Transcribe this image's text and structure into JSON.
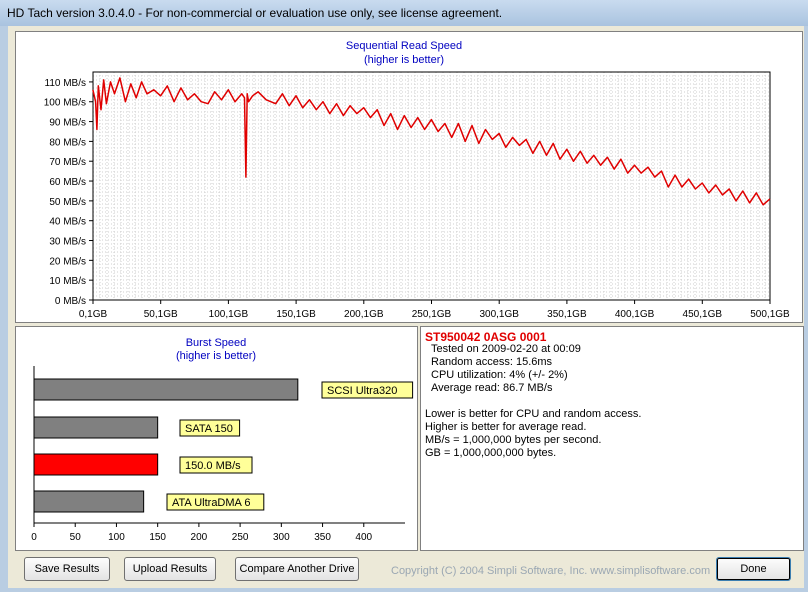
{
  "window": {
    "title": "HD Tach version 3.0.4.0  - For non-commercial or evaluation use only, see license agreement."
  },
  "sequential_chart": {
    "title": "Sequential Read Speed",
    "subtitle": "(higher is better)",
    "y_ticks": [
      "0 MB/s",
      "10 MB/s",
      "20 MB/s",
      "30 MB/s",
      "40 MB/s",
      "50 MB/s",
      "60 MB/s",
      "70 MB/s",
      "80 MB/s",
      "90 MB/s",
      "100 MB/s",
      "110 MB/s"
    ],
    "x_ticks": [
      "0,1GB",
      "50,1GB",
      "100,1GB",
      "150,1GB",
      "200,1GB",
      "250,1GB",
      "300,1GB",
      "350,1GB",
      "400,1GB",
      "450,1GB",
      "500,1GB"
    ]
  },
  "burst_chart": {
    "title": "Burst Speed",
    "subtitle": "(higher is better)",
    "x_ticks": [
      "0",
      "50",
      "100",
      "150",
      "200",
      "250",
      "300",
      "350",
      "400"
    ],
    "bars": [
      {
        "label": "SCSI Ultra320",
        "value": 320,
        "color": "#808080"
      },
      {
        "label": "SATA 150",
        "value": 150,
        "color": "#808080"
      },
      {
        "label": "150.0 MB/s",
        "value": 150,
        "color": "#ff0000"
      },
      {
        "label": "ATA UltraDMA 6",
        "value": 133,
        "color": "#808080"
      }
    ]
  },
  "chart_data": [
    {
      "type": "line",
      "title": "Sequential Read Speed",
      "subtitle": "(higher is better)",
      "xlabel": "",
      "ylabel": "",
      "xlim": [
        0.1,
        500.1
      ],
      "ylim": [
        0,
        115
      ],
      "x_tick_labels": [
        "0,1GB",
        "50,1GB",
        "100,1GB",
        "150,1GB",
        "200,1GB",
        "250,1GB",
        "300,1GB",
        "350,1GB",
        "400,1GB",
        "450,1GB",
        "500,1GB"
      ],
      "y_tick_labels": [
        "0 MB/s",
        "10 MB/s",
        "20 MB/s",
        "30 MB/s",
        "40 MB/s",
        "50 MB/s",
        "60 MB/s",
        "70 MB/s",
        "80 MB/s",
        "90 MB/s",
        "100 MB/s",
        "110 MB/s"
      ],
      "grid": true,
      "series": [
        {
          "color": "#e00000",
          "x": [
            0,
            2,
            3,
            4,
            6,
            8,
            10,
            13,
            16,
            20,
            24,
            28,
            32,
            36,
            40,
            45,
            50,
            55,
            60,
            65,
            70,
            75,
            80,
            85,
            90,
            95,
            100,
            105,
            110,
            112,
            113,
            114,
            115,
            118,
            122,
            128,
            135,
            140,
            145,
            150,
            155,
            160,
            165,
            170,
            175,
            180,
            185,
            190,
            195,
            200,
            205,
            210,
            215,
            220,
            225,
            230,
            235,
            240,
            245,
            250,
            255,
            260,
            265,
            270,
            275,
            280,
            285,
            290,
            295,
            300,
            305,
            310,
            315,
            320,
            325,
            330,
            335,
            340,
            345,
            350,
            355,
            360,
            365,
            370,
            375,
            380,
            385,
            390,
            395,
            400,
            405,
            410,
            415,
            420,
            425,
            430,
            435,
            440,
            445,
            450,
            455,
            460,
            465,
            470,
            475,
            480,
            485,
            490,
            495,
            500
          ],
          "y": [
            106,
            100,
            86,
            108,
            96,
            111,
            99,
            110,
            104,
            112,
            100,
            109,
            102,
            110,
            104,
            106,
            103,
            108,
            100,
            107,
            101,
            104,
            100,
            99,
            105,
            101,
            106,
            100,
            104,
            102,
            62,
            104,
            100,
            103,
            105,
            101,
            99,
            104,
            98,
            103,
            97,
            101,
            96,
            100,
            94,
            99,
            93,
            98,
            94,
            97,
            92,
            96,
            88,
            94,
            86,
            93,
            87,
            92,
            86,
            91,
            85,
            89,
            82,
            89,
            80,
            88,
            79,
            86,
            81,
            84,
            77,
            82,
            78,
            81,
            74,
            80,
            73,
            79,
            71,
            76,
            70,
            75,
            69,
            73,
            68,
            72,
            66,
            71,
            64,
            68,
            64,
            67,
            62,
            65,
            57,
            63,
            57,
            61,
            56,
            59,
            54,
            58,
            53,
            56,
            50,
            55,
            49,
            54,
            48,
            51
          ]
        }
      ]
    },
    {
      "type": "bar",
      "title": "Burst Speed",
      "subtitle": "(higher is better)",
      "categories": [
        "SCSI Ultra320",
        "SATA 150",
        "150.0 MB/s",
        "ATA UltraDMA 6"
      ],
      "values": [
        320,
        150,
        150,
        133
      ],
      "xlim": [
        0,
        450
      ],
      "x_tick_labels": [
        "0",
        "50",
        "100",
        "150",
        "200",
        "250",
        "300",
        "350",
        "400"
      ],
      "orientation": "horizontal",
      "grid": false
    }
  ],
  "info": {
    "drive": "ST950042 0ASG  0001",
    "lines": [
      "Tested on 2009-02-20 at 00:09",
      "Random access: 15.6ms",
      "CPU utilization: 4% (+/- 2%)",
      "Average read: 86.7 MB/s"
    ],
    "notes": [
      "Lower is better for CPU and random access.",
      "Higher is better for average read.",
      "MB/s = 1,000,000 bytes per second.",
      "GB = 1,000,000,000 bytes."
    ]
  },
  "footer": {
    "save_label": "Save Results",
    "upload_label": "Upload Results",
    "compare_label": "Compare Another Drive",
    "copyright": "Copyright (C) 2004 Simpli Software, Inc. www.simplisoftware.com",
    "done_label": "Done"
  }
}
